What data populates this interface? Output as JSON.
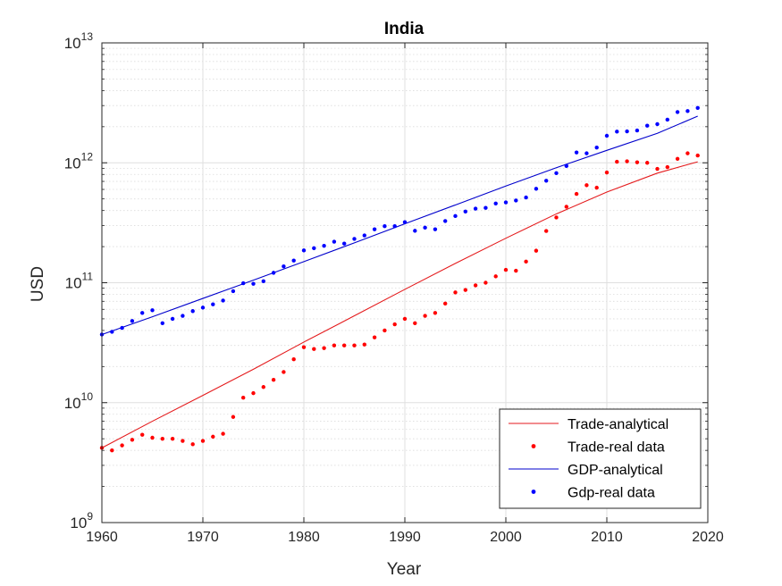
{
  "chart_data": {
    "type": "line",
    "title": "India",
    "xlabel": "Year",
    "ylabel": "USD",
    "xlim": [
      1960,
      2020
    ],
    "ylim": [
      1000000000.0,
      10000000000000.0
    ],
    "yscale": "log",
    "grid": true,
    "minor_grid": true,
    "legend_position": "bottom-right",
    "x_ticks": [
      "1960",
      "1970",
      "1980",
      "1990",
      "2000",
      "2010",
      "2020"
    ],
    "y_ticks": [
      {
        "value": 1000000000.0,
        "base": "10",
        "exp": "9"
      },
      {
        "value": 10000000000.0,
        "base": "10",
        "exp": "10"
      },
      {
        "value": 100000000000.0,
        "base": "10",
        "exp": "11"
      },
      {
        "value": 1000000000000.0,
        "base": "10",
        "exp": "12"
      },
      {
        "value": 10000000000000.0,
        "base": "10",
        "exp": "13"
      }
    ],
    "series": [
      {
        "name": "Trade-analytical",
        "kind": "line",
        "color": "#e41a1c",
        "x": [
          1960,
          1965,
          1970,
          1975,
          1980,
          1985,
          1990,
          1995,
          2000,
          2005,
          2010,
          2015,
          2019
        ],
        "y": [
          4200000000.0,
          7000000000.0,
          11500000000.0,
          19000000000.0,
          32000000000.0,
          53000000000.0,
          88000000000.0,
          145000000000.0,
          235000000000.0,
          375000000000.0,
          570000000000.0,
          820000000000.0,
          1020000000000.0
        ]
      },
      {
        "name": "Trade-real data",
        "kind": "points",
        "color": "#ff0000",
        "x": [
          1960,
          1961,
          1962,
          1963,
          1964,
          1965,
          1966,
          1967,
          1968,
          1969,
          1970,
          1971,
          1972,
          1973,
          1974,
          1975,
          1976,
          1977,
          1978,
          1979,
          1980,
          1981,
          1982,
          1983,
          1984,
          1985,
          1986,
          1987,
          1988,
          1989,
          1990,
          1991,
          1992,
          1993,
          1994,
          1995,
          1996,
          1997,
          1998,
          1999,
          2000,
          2001,
          2002,
          2003,
          2004,
          2005,
          2006,
          2007,
          2008,
          2009,
          2010,
          2011,
          2012,
          2013,
          2014,
          2015,
          2016,
          2017,
          2018,
          2019
        ],
        "y": [
          4200000000.0,
          4000000000.0,
          4400000000.0,
          4900000000.0,
          5400000000.0,
          5100000000.0,
          5000000000.0,
          5000000000.0,
          4800000000.0,
          4500000000.0,
          4800000000.0,
          5200000000.0,
          5500000000.0,
          7600000000.0,
          11000000000.0,
          12000000000.0,
          13500000000.0,
          15500000000.0,
          18000000000.0,
          23000000000.0,
          29000000000.0,
          28000000000.0,
          28500000000.0,
          30000000000.0,
          30000000000.0,
          30000000000.0,
          30500000000.0,
          35000000000.0,
          40000000000.0,
          45000000000.0,
          50000000000.0,
          46000000000.0,
          53000000000.0,
          56000000000.0,
          67000000000.0,
          83000000000.0,
          87000000000.0,
          95000000000.0,
          100000000000.0,
          113000000000.0,
          128000000000.0,
          126000000000.0,
          150000000000.0,
          185000000000.0,
          270000000000.0,
          350000000000.0,
          430000000000.0,
          550000000000.0,
          650000000000.0,
          620000000000.0,
          830000000000.0,
          1020000000000.0,
          1030000000000.0,
          1010000000000.0,
          1000000000000.0,
          890000000000.0,
          920000000000.0,
          1080000000000.0,
          1200000000000.0,
          1150000000000.0
        ]
      },
      {
        "name": "GDP-analytical",
        "kind": "line",
        "color": "#0000cc",
        "x": [
          1960,
          1965,
          1970,
          1975,
          1980,
          1985,
          1990,
          1995,
          2000,
          2005,
          2010,
          2015,
          2019
        ],
        "y": [
          37000000000.0,
          52000000000.0,
          74000000000.0,
          105000000000.0,
          150000000000.0,
          215000000000.0,
          310000000000.0,
          445000000000.0,
          640000000000.0,
          910000000000.0,
          1270000000000.0,
          1760000000000.0,
          2450000000000.0
        ]
      },
      {
        "name": "Gdp-real data",
        "kind": "points",
        "color": "#0000ff",
        "x": [
          1960,
          1961,
          1962,
          1963,
          1964,
          1965,
          1966,
          1967,
          1968,
          1969,
          1970,
          1971,
          1972,
          1973,
          1974,
          1975,
          1976,
          1977,
          1978,
          1979,
          1980,
          1981,
          1982,
          1983,
          1984,
          1985,
          1986,
          1987,
          1988,
          1989,
          1990,
          1991,
          1992,
          1993,
          1994,
          1995,
          1996,
          1997,
          1998,
          1999,
          2000,
          2001,
          2002,
          2003,
          2004,
          2005,
          2006,
          2007,
          2008,
          2009,
          2010,
          2011,
          2012,
          2013,
          2014,
          2015,
          2016,
          2017,
          2018,
          2019
        ],
        "y": [
          37000000000.0,
          39000000000.0,
          42000000000.0,
          48000000000.0,
          56000000000.0,
          59000000000.0,
          46000000000.0,
          50000000000.0,
          53000000000.0,
          58000000000.0,
          62000000000.0,
          66000000000.0,
          71000000000.0,
          85000000000.0,
          99000000000.0,
          98000000000.0,
          103000000000.0,
          121000000000.0,
          137000000000.0,
          153000000000.0,
          186000000000.0,
          194000000000.0,
          203000000000.0,
          220000000000.0,
          212000000000.0,
          232000000000.0,
          248000000000.0,
          279000000000.0,
          296000000000.0,
          296000000000.0,
          320000000000.0,
          271000000000.0,
          288000000000.0,
          279000000000.0,
          327000000000.0,
          360000000000.0,
          392000000000.0,
          415000000000.0,
          421000000000.0,
          458000000000.0,
          468000000000.0,
          485000000000.0,
          514000000000.0,
          607000000000.0,
          709000000000.0,
          820000000000.0,
          940000000000.0,
          1220000000000.0,
          1200000000000.0,
          1340000000000.0,
          1680000000000.0,
          1820000000000.0,
          1830000000000.0,
          1860000000000.0,
          2040000000000.0,
          2100000000000.0,
          2290000000000.0,
          2650000000000.0,
          2700000000000.0,
          2870000000000.0
        ]
      }
    ]
  }
}
